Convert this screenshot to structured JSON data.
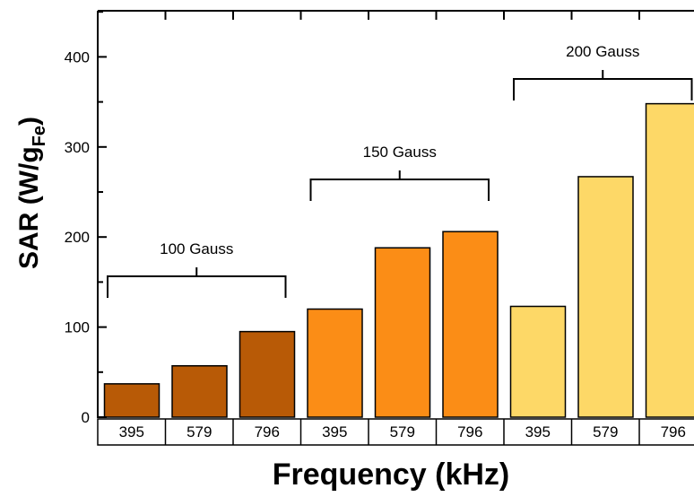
{
  "chart_data": {
    "type": "bar",
    "xlabel": "Frequency (kHz)",
    "ylabel": "SAR (W/g",
    "ylabel_sub": "Fe",
    "ylabel_close": ")",
    "ylim": [
      0,
      450
    ],
    "yticks": [
      0,
      100,
      200,
      300,
      400
    ],
    "grid": false,
    "categories": [
      "395",
      "579",
      "796",
      "395",
      "579",
      "796",
      "395",
      "579",
      "796"
    ],
    "groups": [
      {
        "label": "100 Gauss",
        "color": "#b85a06",
        "values": [
          37,
          57,
          95
        ]
      },
      {
        "label": "150 Gauss",
        "color": "#fb8d16",
        "values": [
          120,
          188,
          206
        ]
      },
      {
        "label": "200 Gauss",
        "color": "#fdd867",
        "values": [
          123,
          267,
          348
        ]
      }
    ]
  }
}
